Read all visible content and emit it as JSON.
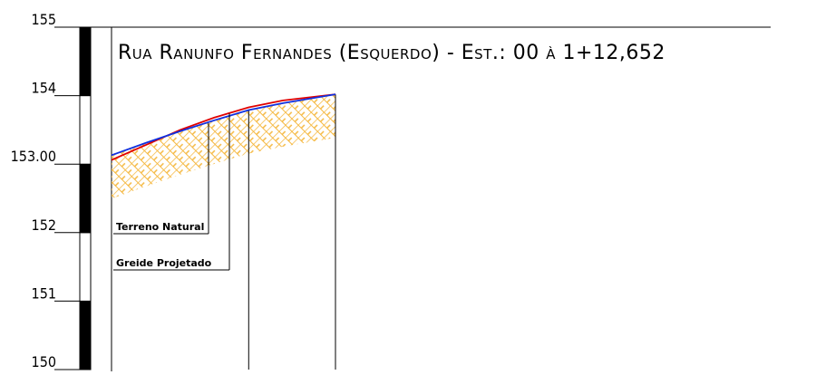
{
  "chart_data": {
    "type": "line",
    "title": "Rua Ranunfo Fernandes (Esquerdo) - Est.: 00 à 1+12,652",
    "x": [
      0,
      5,
      10,
      15,
      20,
      25,
      32.652
    ],
    "xlim": [
      0,
      32.652
    ],
    "series": [
      {
        "name": "Terreno Natural",
        "color": "#e00000",
        "values": [
          153.06,
          153.28,
          153.5,
          153.68,
          153.83,
          153.93,
          154.02
        ]
      },
      {
        "name": "Greide Projetado",
        "color": "#1030e0",
        "values": [
          153.13,
          153.31,
          153.48,
          153.64,
          153.79,
          153.89,
          154.02
        ]
      }
    ],
    "ylim": [
      150,
      155
    ],
    "yticks": [
      150,
      151,
      152,
      {
        "value": 153,
        "label": "153.00"
      },
      154,
      155
    ],
    "hatch_color": "#f5b840"
  }
}
